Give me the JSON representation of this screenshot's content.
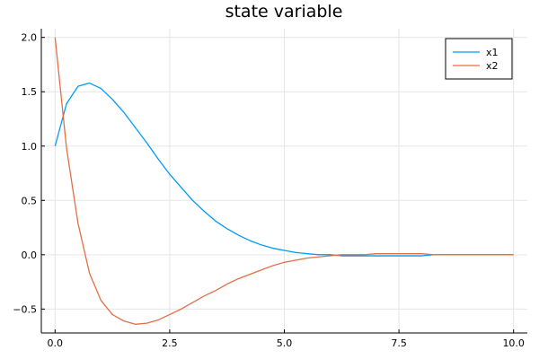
{
  "chart_data": {
    "type": "line",
    "title": "state variable",
    "xlabel": "",
    "ylabel": "",
    "xlim": [
      -0.3,
      10.3
    ],
    "ylim": [
      -0.72,
      2.08
    ],
    "xticks": [
      0.0,
      2.5,
      5.0,
      7.5,
      10.0
    ],
    "xtick_labels": [
      "0.0",
      "2.5",
      "5.0",
      "7.5",
      "10.0"
    ],
    "yticks": [
      -0.5,
      0.0,
      0.5,
      1.0,
      1.5,
      2.0
    ],
    "ytick_labels": [
      "−0.5",
      "0.0",
      "0.5",
      "1.0",
      "1.5",
      "2.0"
    ],
    "grid": true,
    "legend_position": "top-right",
    "x": [
      0.0,
      0.25,
      0.5,
      0.75,
      1.0,
      1.25,
      1.5,
      1.75,
      2.0,
      2.25,
      2.5,
      2.75,
      3.0,
      3.25,
      3.5,
      3.75,
      4.0,
      4.25,
      4.5,
      4.75,
      5.0,
      5.25,
      5.5,
      5.75,
      6.0,
      6.25,
      6.5,
      6.75,
      7.0,
      7.25,
      7.5,
      7.75,
      8.0,
      8.25,
      8.5,
      8.75,
      9.0,
      9.25,
      9.5,
      9.75,
      10.0
    ],
    "series": [
      {
        "name": "x1",
        "color": "#009af9",
        "values": [
          1.0,
          1.39,
          1.55,
          1.58,
          1.53,
          1.43,
          1.31,
          1.17,
          1.03,
          0.88,
          0.74,
          0.62,
          0.5,
          0.4,
          0.31,
          0.24,
          0.18,
          0.13,
          0.09,
          0.06,
          0.04,
          0.02,
          0.01,
          0.0,
          0.0,
          -0.01,
          -0.01,
          -0.01,
          -0.01,
          -0.01,
          -0.01,
          -0.01,
          -0.01,
          0.0,
          0.0,
          0.0,
          0.0,
          0.0,
          0.0,
          0.0,
          0.0
        ]
      },
      {
        "name": "x2",
        "color": "#e26f46",
        "values": [
          2.0,
          0.98,
          0.29,
          -0.17,
          -0.42,
          -0.55,
          -0.61,
          -0.64,
          -0.63,
          -0.6,
          -0.55,
          -0.5,
          -0.44,
          -0.38,
          -0.33,
          -0.27,
          -0.22,
          -0.18,
          -0.14,
          -0.1,
          -0.07,
          -0.05,
          -0.03,
          -0.02,
          -0.01,
          0.0,
          0.0,
          0.0,
          0.01,
          0.01,
          0.01,
          0.01,
          0.01,
          0.0,
          0.0,
          0.0,
          0.0,
          0.0,
          0.0,
          0.0,
          0.0
        ]
      }
    ]
  }
}
